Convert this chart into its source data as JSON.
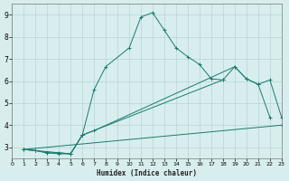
{
  "xlabel": "Humidex (Indice chaleur)",
  "xlim": [
    0,
    23
  ],
  "ylim": [
    2.5,
    9.5
  ],
  "xticks": [
    0,
    1,
    2,
    3,
    4,
    5,
    6,
    7,
    8,
    9,
    10,
    11,
    12,
    13,
    14,
    15,
    16,
    17,
    18,
    19,
    20,
    21,
    22,
    23
  ],
  "yticks": [
    3,
    4,
    5,
    6,
    7,
    8,
    9
  ],
  "bg_color": "#d8eeee",
  "grid_color": "#b8d4d4",
  "line_color": "#1a7a6e",
  "lines": [
    {
      "x": [
        1,
        2,
        3,
        4,
        5,
        6,
        7,
        8,
        10,
        11,
        12,
        13,
        14,
        15,
        16,
        17,
        18
      ],
      "y": [
        2.9,
        2.85,
        2.75,
        2.75,
        2.7,
        3.55,
        5.6,
        6.65,
        7.5,
        8.9,
        9.1,
        8.3,
        7.5,
        7.1,
        6.75,
        6.1,
        6.05
      ]
    },
    {
      "x": [
        1,
        2,
        3,
        4,
        5,
        6,
        7,
        19,
        20,
        21,
        22
      ],
      "y": [
        2.9,
        2.85,
        2.75,
        2.7,
        2.7,
        3.55,
        3.75,
        6.65,
        6.1,
        5.85,
        4.35
      ]
    },
    {
      "x": [
        1,
        5,
        6,
        18,
        19,
        20,
        21,
        22,
        23
      ],
      "y": [
        2.9,
        2.7,
        3.55,
        6.05,
        6.65,
        6.1,
        5.85,
        6.05,
        4.35
      ]
    },
    {
      "x": [
        1,
        23
      ],
      "y": [
        2.9,
        4.0
      ]
    }
  ]
}
